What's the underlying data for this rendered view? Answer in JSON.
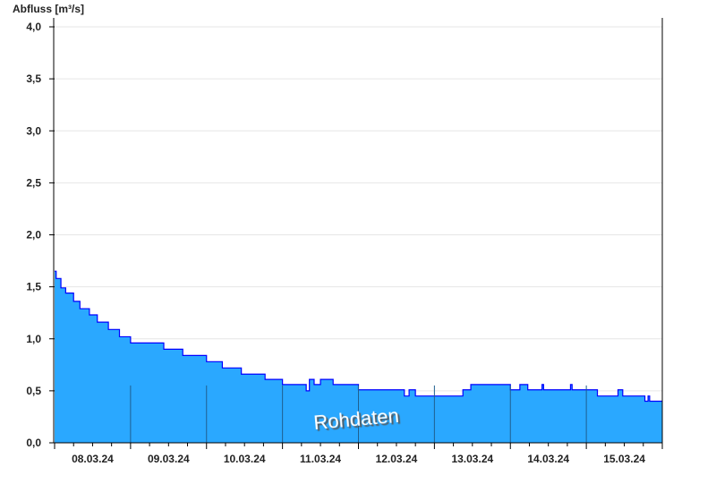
{
  "chart_data": {
    "type": "area",
    "ylabel": "Abfluss [m³/s]",
    "ylim": [
      0,
      4.0
    ],
    "yticks": [
      "0,0",
      "0,5",
      "1,0",
      "1,5",
      "2,0",
      "2,5",
      "3,0",
      "3,5",
      "4,0"
    ],
    "xlim": [
      "08.03.24 00:00",
      "16.03.24 00:00"
    ],
    "xtick_labels": [
      "08.03.24",
      "09.03.24",
      "10.03.24",
      "11.03.24",
      "12.03.24",
      "13.03.24",
      "14.03.24",
      "15.03.24"
    ],
    "grid": true,
    "step": "after",
    "watermark": "Rohdaten",
    "colors": {
      "fill": "#2aa8ff",
      "line": "#0000ff",
      "grid": "#e6e6e6",
      "separator": "#1f5f8f"
    },
    "points": [
      [
        "08.03.24 00:00",
        1.65
      ],
      [
        "08.03.24 00:30",
        1.58
      ],
      [
        "08.03.24 02:00",
        1.49
      ],
      [
        "08.03.24 03:30",
        1.44
      ],
      [
        "08.03.24 06:00",
        1.36
      ],
      [
        "08.03.24 08:00",
        1.29
      ],
      [
        "08.03.24 11:00",
        1.23
      ],
      [
        "08.03.24 13:30",
        1.16
      ],
      [
        "08.03.24 17:00",
        1.09
      ],
      [
        "08.03.24 20:30",
        1.02
      ],
      [
        "09.03.24 00:00",
        0.96
      ],
      [
        "09.03.24 10:30",
        0.9
      ],
      [
        "09.03.24 16:30",
        0.84
      ],
      [
        "10.03.24 00:00",
        0.78
      ],
      [
        "10.03.24 05:00",
        0.72
      ],
      [
        "10.03.24 11:00",
        0.66
      ],
      [
        "10.03.24 18:30",
        0.61
      ],
      [
        "11.03.24 00:00",
        0.56
      ],
      [
        "11.03.24 07:30",
        0.5
      ],
      [
        "11.03.24 08:30",
        0.61
      ],
      [
        "11.03.24 10:00",
        0.56
      ],
      [
        "11.03.24 12:00",
        0.61
      ],
      [
        "11.03.24 16:00",
        0.56
      ],
      [
        "12.03.24 00:00",
        0.51
      ],
      [
        "12.03.24 14:30",
        0.45
      ],
      [
        "12.03.24 16:00",
        0.51
      ],
      [
        "12.03.24 18:00",
        0.45
      ],
      [
        "13.03.24 09:00",
        0.51
      ],
      [
        "13.03.24 11:30",
        0.56
      ],
      [
        "14.03.24 00:00",
        0.51
      ],
      [
        "14.03.24 03:00",
        0.56
      ],
      [
        "14.03.24 05:30",
        0.51
      ],
      [
        "14.03.24 10:00",
        0.56
      ],
      [
        "14.03.24 10:30",
        0.51
      ],
      [
        "14.03.24 19:00",
        0.56
      ],
      [
        "14.03.24 19:30",
        0.51
      ],
      [
        "15.03.24 03:30",
        0.45
      ],
      [
        "15.03.24 10:00",
        0.51
      ],
      [
        "15.03.24 11:30",
        0.45
      ],
      [
        "15.03.24 18:30",
        0.4
      ],
      [
        "15.03.24 19:30",
        0.45
      ],
      [
        "15.03.24 20:00",
        0.4
      ],
      [
        "16.03.24 00:00",
        0.4
      ]
    ]
  }
}
